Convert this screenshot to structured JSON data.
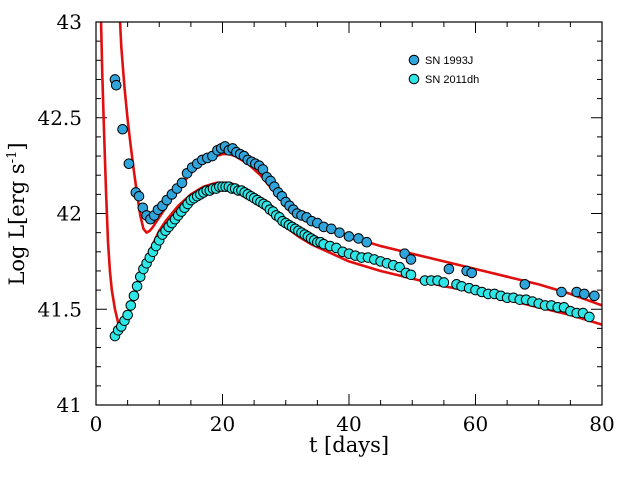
{
  "chart_data": {
    "type": "scatter",
    "xlabel": "t [days]",
    "ylabel_main": "Log L[erg s",
    "ylabel_sup": "-1",
    "ylabel_close": "]",
    "xlim": [
      0,
      80
    ],
    "ylim": [
      41,
      43
    ],
    "xticks": [
      "0",
      "20",
      "40",
      "60",
      "80"
    ],
    "yticks": [
      "41",
      "41.5",
      "42",
      "42.5",
      "43"
    ],
    "legend_position": "top-right",
    "series": [
      {
        "name": "SN 1993J",
        "color": "#2fa5dc",
        "marker": "circle",
        "points": [
          [
            3.0,
            42.7
          ],
          [
            3.2,
            42.67
          ],
          [
            4.2,
            42.44
          ],
          [
            5.2,
            42.26
          ],
          [
            6.3,
            42.11
          ],
          [
            6.8,
            42.09
          ],
          [
            7.4,
            42.03
          ],
          [
            8.0,
            41.99
          ],
          [
            8.6,
            41.97
          ],
          [
            9.2,
            41.99
          ],
          [
            9.8,
            42.02
          ],
          [
            10.5,
            42.04
          ],
          [
            11.2,
            42.07
          ],
          [
            12.0,
            42.1
          ],
          [
            12.8,
            42.13
          ],
          [
            13.6,
            42.16
          ],
          [
            14.4,
            42.21
          ],
          [
            15.2,
            42.24
          ],
          [
            16.0,
            42.26
          ],
          [
            16.8,
            42.28
          ],
          [
            17.6,
            42.29
          ],
          [
            18.4,
            42.3
          ],
          [
            19.2,
            42.33
          ],
          [
            19.8,
            42.34
          ],
          [
            20.4,
            42.35
          ],
          [
            21.0,
            42.33
          ],
          [
            21.6,
            42.34
          ],
          [
            22.2,
            42.32
          ],
          [
            22.8,
            42.31
          ],
          [
            23.4,
            42.3
          ],
          [
            24.0,
            42.28
          ],
          [
            24.6,
            42.27
          ],
          [
            25.2,
            42.26
          ],
          [
            25.8,
            42.25
          ],
          [
            26.4,
            42.23
          ],
          [
            27.0,
            42.19
          ],
          [
            27.6,
            42.17
          ],
          [
            28.2,
            42.14
          ],
          [
            28.8,
            42.11
          ],
          [
            29.4,
            42.09
          ],
          [
            30.0,
            42.06
          ],
          [
            30.6,
            42.04
          ],
          [
            31.2,
            42.02
          ],
          [
            31.8,
            42.0
          ],
          [
            32.5,
            41.99
          ],
          [
            33.3,
            41.98
          ],
          [
            34.1,
            41.96
          ],
          [
            35.0,
            41.95
          ],
          [
            36.0,
            41.93
          ],
          [
            37.2,
            41.92
          ],
          [
            38.5,
            41.9
          ],
          [
            40.0,
            41.88
          ],
          [
            41.5,
            41.87
          ],
          [
            42.8,
            41.85
          ],
          [
            48.8,
            41.79
          ],
          [
            49.8,
            41.76
          ],
          [
            55.8,
            41.71
          ],
          [
            58.6,
            41.7
          ],
          [
            59.4,
            41.69
          ],
          [
            67.8,
            41.63
          ],
          [
            73.6,
            41.59
          ],
          [
            76.0,
            41.59
          ],
          [
            77.2,
            41.58
          ],
          [
            78.8,
            41.57
          ]
        ]
      },
      {
        "name": "SN 2011dh",
        "color": "#2ee6e6",
        "marker": "circle",
        "points": [
          [
            3.0,
            41.36
          ],
          [
            3.5,
            41.39
          ],
          [
            4.0,
            41.41
          ],
          [
            4.5,
            41.44
          ],
          [
            5.0,
            41.47
          ],
          [
            5.5,
            41.52
          ],
          [
            6.0,
            41.57
          ],
          [
            6.5,
            41.62
          ],
          [
            7.0,
            41.67
          ],
          [
            7.5,
            41.71
          ],
          [
            8.0,
            41.74
          ],
          [
            8.5,
            41.77
          ],
          [
            9.0,
            41.8
          ],
          [
            9.5,
            41.83
          ],
          [
            10.0,
            41.86
          ],
          [
            10.5,
            41.89
          ],
          [
            11.0,
            41.91
          ],
          [
            11.5,
            41.93
          ],
          [
            12.0,
            41.95
          ],
          [
            12.5,
            41.97
          ],
          [
            13.0,
            41.99
          ],
          [
            13.5,
            42.01
          ],
          [
            14.0,
            42.03
          ],
          [
            14.5,
            42.05
          ],
          [
            15.0,
            42.07
          ],
          [
            15.5,
            42.08
          ],
          [
            16.0,
            42.09
          ],
          [
            16.5,
            42.1
          ],
          [
            17.0,
            42.11
          ],
          [
            17.5,
            42.12
          ],
          [
            18.0,
            42.12
          ],
          [
            18.5,
            42.13
          ],
          [
            19.0,
            42.13
          ],
          [
            19.5,
            42.14
          ],
          [
            20.0,
            42.14
          ],
          [
            20.5,
            42.14
          ],
          [
            21.0,
            42.14
          ],
          [
            21.5,
            42.13
          ],
          [
            22.0,
            42.13
          ],
          [
            22.5,
            42.12
          ],
          [
            23.0,
            42.12
          ],
          [
            23.5,
            42.11
          ],
          [
            24.0,
            42.1
          ],
          [
            24.5,
            42.09
          ],
          [
            25.0,
            42.08
          ],
          [
            25.5,
            42.07
          ],
          [
            26.0,
            42.06
          ],
          [
            26.5,
            42.05
          ],
          [
            27.0,
            42.04
          ],
          [
            27.5,
            42.02
          ],
          [
            28.0,
            42.01
          ],
          [
            28.5,
            41.99
          ],
          [
            29.0,
            41.98
          ],
          [
            29.5,
            41.96
          ],
          [
            30.0,
            41.95
          ],
          [
            30.5,
            41.94
          ],
          [
            31.0,
            41.93
          ],
          [
            31.5,
            41.92
          ],
          [
            32.0,
            41.91
          ],
          [
            32.5,
            41.9
          ],
          [
            33.0,
            41.89
          ],
          [
            33.5,
            41.88
          ],
          [
            34.0,
            41.87
          ],
          [
            34.5,
            41.86
          ],
          [
            35.0,
            41.85
          ],
          [
            35.5,
            41.85
          ],
          [
            36.0,
            41.84
          ],
          [
            37.0,
            41.83
          ],
          [
            38.0,
            41.82
          ],
          [
            39.0,
            41.8
          ],
          [
            40.0,
            41.79
          ],
          [
            41.0,
            41.78
          ],
          [
            42.0,
            41.77
          ],
          [
            43.0,
            41.77
          ],
          [
            44.0,
            41.76
          ],
          [
            45.0,
            41.75
          ],
          [
            46.0,
            41.74
          ],
          [
            47.0,
            41.73
          ],
          [
            48.0,
            41.72
          ],
          [
            49.0,
            41.69
          ],
          [
            49.8,
            41.68
          ],
          [
            52.0,
            41.65
          ],
          [
            53.0,
            41.65
          ],
          [
            54.0,
            41.65
          ],
          [
            55.0,
            41.64
          ],
          [
            57.0,
            41.63
          ],
          [
            57.8,
            41.62
          ],
          [
            59.0,
            41.61
          ],
          [
            60.0,
            41.6
          ],
          [
            61.0,
            41.59
          ],
          [
            62.0,
            41.58
          ],
          [
            63.0,
            41.58
          ],
          [
            64.0,
            41.57
          ],
          [
            65.0,
            41.56
          ],
          [
            66.0,
            41.56
          ],
          [
            67.0,
            41.55
          ],
          [
            68.0,
            41.55
          ],
          [
            69.0,
            41.54
          ],
          [
            70.0,
            41.53
          ],
          [
            71.0,
            41.52
          ],
          [
            72.0,
            41.52
          ],
          [
            73.0,
            41.51
          ],
          [
            74.0,
            41.51
          ],
          [
            75.0,
            41.49
          ],
          [
            76.0,
            41.48
          ],
          [
            77.0,
            41.48
          ],
          [
            78.0,
            41.46
          ]
        ]
      }
    ],
    "model_curves": [
      {
        "color": "#e01010",
        "points": [
          [
            3.5,
            43.2
          ],
          [
            4.0,
            42.87
          ],
          [
            4.5,
            42.66
          ],
          [
            5.0,
            42.49
          ],
          [
            5.5,
            42.35
          ],
          [
            6.0,
            42.22
          ],
          [
            6.5,
            42.1
          ],
          [
            7.0,
            41.99
          ],
          [
            7.5,
            41.92
          ],
          [
            8.0,
            41.9
          ],
          [
            8.5,
            41.91
          ],
          [
            9.0,
            41.93
          ],
          [
            10.0,
            41.98
          ],
          [
            11.0,
            42.03
          ],
          [
            12.0,
            42.08
          ],
          [
            13.0,
            42.13
          ],
          [
            14.0,
            42.17
          ],
          [
            15.0,
            42.21
          ],
          [
            16.0,
            42.24
          ],
          [
            17.0,
            42.27
          ],
          [
            18.0,
            42.29
          ],
          [
            19.0,
            42.3
          ],
          [
            20.0,
            42.31
          ],
          [
            21.0,
            42.31
          ],
          [
            22.0,
            42.3
          ],
          [
            23.0,
            42.28
          ],
          [
            24.0,
            42.26
          ],
          [
            25.0,
            42.23
          ],
          [
            26.0,
            42.2
          ],
          [
            27.0,
            42.16
          ],
          [
            28.0,
            42.12
          ],
          [
            29.0,
            42.09
          ],
          [
            30.0,
            42.06
          ],
          [
            32.0,
            42.01
          ],
          [
            34.0,
            41.97
          ],
          [
            36.0,
            41.94
          ],
          [
            38.0,
            41.91
          ],
          [
            40.0,
            41.88
          ],
          [
            45.0,
            41.83
          ],
          [
            50.0,
            41.79
          ],
          [
            55.0,
            41.75
          ],
          [
            60.0,
            41.71
          ],
          [
            65.0,
            41.67
          ],
          [
            70.0,
            41.63
          ],
          [
            75.0,
            41.58
          ],
          [
            80.0,
            41.52
          ]
        ]
      },
      {
        "color": "#e01010",
        "points": [
          [
            0.8,
            43.0
          ],
          [
            1.0,
            42.72
          ],
          [
            1.3,
            42.4
          ],
          [
            1.6,
            42.1
          ],
          [
            1.9,
            41.85
          ],
          [
            2.2,
            41.7
          ],
          [
            2.5,
            41.6
          ],
          [
            3.0,
            41.5
          ],
          [
            3.5,
            41.43
          ],
          [
            4.0,
            41.41
          ],
          [
            4.5,
            41.42
          ],
          [
            5.0,
            41.45
          ],
          [
            5.5,
            41.5
          ],
          [
            6.0,
            41.56
          ],
          [
            7.0,
            41.67
          ],
          [
            8.0,
            41.76
          ],
          [
            9.0,
            41.84
          ],
          [
            10.0,
            41.91
          ],
          [
            11.0,
            41.96
          ],
          [
            12.0,
            42.0
          ],
          [
            13.0,
            42.04
          ],
          [
            14.0,
            42.07
          ],
          [
            15.0,
            42.1
          ],
          [
            16.0,
            42.12
          ],
          [
            17.0,
            42.14
          ],
          [
            18.0,
            42.15
          ],
          [
            19.0,
            42.16
          ],
          [
            20.0,
            42.16
          ],
          [
            21.0,
            42.16
          ],
          [
            22.0,
            42.15
          ],
          [
            23.0,
            42.13
          ],
          [
            24.0,
            42.11
          ],
          [
            25.0,
            42.08
          ],
          [
            26.0,
            42.05
          ],
          [
            27.0,
            42.02
          ],
          [
            28.0,
            41.99
          ],
          [
            29.0,
            41.96
          ],
          [
            30.0,
            41.93
          ],
          [
            32.0,
            41.88
          ],
          [
            34.0,
            41.84
          ],
          [
            36.0,
            41.81
          ],
          [
            38.0,
            41.78
          ],
          [
            40.0,
            41.75
          ],
          [
            45.0,
            41.7
          ],
          [
            50.0,
            41.66
          ],
          [
            55.0,
            41.62
          ],
          [
            60.0,
            41.59
          ],
          [
            65.0,
            41.55
          ],
          [
            70.0,
            41.51
          ],
          [
            75.0,
            41.47
          ],
          [
            80.0,
            41.42
          ]
        ]
      }
    ]
  }
}
